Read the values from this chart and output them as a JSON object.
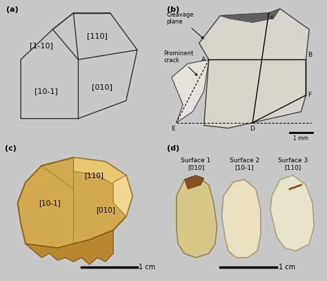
{
  "fig_width": 4.74,
  "fig_height": 4.07,
  "dpi": 100,
  "bg_color": "#c8c8c8",
  "panel_labels": [
    "(a)",
    "(b)",
    "(c)",
    "(d)"
  ],
  "panel_label_fontsize": 8,
  "crystal_miller_indices": {
    "top_left": "[1-10]",
    "top_right": "[110]",
    "bottom_left": "[10-1]",
    "bottom_right": "[010]"
  },
  "panel_b_labels": {
    "cleavage_plane": "Cleavage\nplane",
    "prominent_crack": "Prominent\ncrack",
    "scale": "1 mm"
  },
  "panel_c_labels": {
    "indices": [
      "[110]",
      "[10-1]",
      "[010]"
    ],
    "scale": "1 cm"
  },
  "panel_d_labels": {
    "surface1": "Surface 1\n[010]",
    "surface2": "Surface 2\n[10-1]",
    "surface3": "Surface 3\n[110]",
    "scale": "1 cm"
  },
  "text_color": "#000000",
  "panel_a_bg": "#f5f5f5",
  "panel_b_bg": "#d0d0c8",
  "panel_c_bg": "#b8b4a8",
  "panel_d_bg": "#c0bcb0"
}
